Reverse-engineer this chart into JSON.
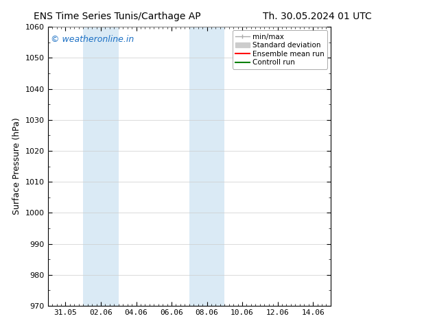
{
  "title_left": "ENS Time Series Tunis/Carthage AP",
  "title_right": "Th. 30.05.2024 01 UTC",
  "ylabel": "Surface Pressure (hPa)",
  "ylim": [
    970,
    1060
  ],
  "yticks": [
    970,
    980,
    990,
    1000,
    1010,
    1020,
    1030,
    1040,
    1050,
    1060
  ],
  "x_min": 0,
  "x_max": 16,
  "xtick_labels": [
    "31.05",
    "02.06",
    "04.06",
    "06.06",
    "08.06",
    "10.06",
    "12.06",
    "14.06"
  ],
  "xtick_positions": [
    1,
    3,
    5,
    7,
    9,
    11,
    13,
    15
  ],
  "shade_bands": [
    {
      "x_start": 2,
      "x_end": 4,
      "color": "#daeaf5"
    },
    {
      "x_start": 8,
      "x_end": 10,
      "color": "#daeaf5"
    }
  ],
  "watermark_text": "© weatheronline.in",
  "watermark_color": "#1a6fc4",
  "legend_items": [
    {
      "label": "min/max",
      "color": "#aaaaaa",
      "lw": 1.0
    },
    {
      "label": "Standard deviation",
      "color": "#cccccc",
      "lw": 6
    },
    {
      "label": "Ensemble mean run",
      "color": "#ff0000",
      "lw": 1.5
    },
    {
      "label": "Controll run",
      "color": "#008000",
      "lw": 1.5
    }
  ],
  "bg_color": "#ffffff",
  "plot_bg_color": "#ffffff",
  "title_fontsize": 10,
  "label_fontsize": 9,
  "tick_fontsize": 8,
  "legend_fontsize": 7.5,
  "watermark_fontsize": 9
}
